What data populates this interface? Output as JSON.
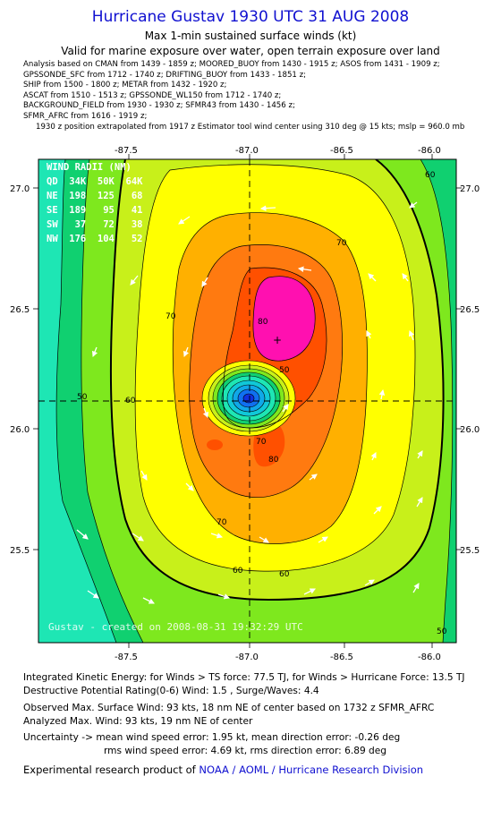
{
  "title": "Hurricane Gustav 1930 UTC 31 AUG 2008",
  "subtitle1": "Max 1-min sustained surface winds (kt)",
  "subtitle2": "Valid for marine exposure over water, open terrain exposure over land",
  "sources": [
    "Analysis based on  CMAN from 1439 - 1859 z;  MOORED_BUOY from 1430 - 1915 z;  ASOS from 1431 - 1909 z;",
    "GPSSONDE_SFC from 1712 - 1740 z;  DRIFTING_BUOY from 1433 - 1851 z;",
    "SHIP from 1500 - 1800 z;  METAR from 1432 - 1920 z;",
    "ASCAT from 1510 - 1513 z;  GPSSONDE_WL150 from 1712 - 1740 z;",
    "BACKGROUND_FIELD from 1930 - 1930 z;  SFMR43 from 1430 - 1456 z;",
    "SFMR_AFRC from 1616 - 1919 z;"
  ],
  "position_note": "1930 z position extrapolated from 1917 z Estimator tool wind center using 310 deg @ 15 kts; mslp = 960.0 mb",
  "map": {
    "lon_ticks": [
      "-87.5",
      "-87.0",
      "-86.5",
      "-86.0"
    ],
    "lat_ticks": [
      "27.0",
      "26.5",
      "26.0",
      "25.5"
    ],
    "wind_radii": {
      "header": "WIND RADII (NM)",
      "cols": "QD  34K  50K  64K",
      "rows": [
        "NE  198  125   68",
        "SE  189   95   41",
        "SW   37   72   38",
        "NW  176  104   52"
      ]
    },
    "contour_labels": [
      "70",
      "70",
      "60",
      "60",
      "60",
      "50",
      "50",
      "70",
      "80",
      "80",
      "60",
      "50",
      "70"
    ],
    "credit": "Gustav - created on 2008-08-31 19:32:29 UTC"
  },
  "footer": {
    "ike": "Integrated Kinetic Energy:  for Winds > TS force: 77.5 TJ,  for Winds > Hurricane Force: 13.5 TJ",
    "dpr": "Destructive Potential Rating(0-6)   Wind: 1.5 , Surge/Waves: 4.4",
    "obs_max": "Observed Max. Surface Wind: 93 kts, 18 nm NE of center based on 1732 z SFMR_AFRC",
    "analyzed_max": "Analyzed Max. Wind: 93 kts, 19 nm NE of center",
    "uncert1": "Uncertainty -> mean wind speed error: 1.95 kt,   mean direction error:  -0.26 deg",
    "uncert2": "rms wind speed error: 4.69 kt,   rms direction error: 6.89 deg",
    "credit_prefix": "Experimental research product of ",
    "credit_org": "NOAA / AOML / Hurricane Research Division"
  },
  "colors": {
    "title": "#1010d0",
    "w40": "#1ee6b4",
    "w50": "#10d070",
    "w55": "#7ee81e",
    "w60": "#c8f01a",
    "w64": "#ffff00",
    "w70": "#ffb000",
    "w75": "#ff7a10",
    "w80": "#ff5000",
    "w90": "#ff10b0"
  }
}
